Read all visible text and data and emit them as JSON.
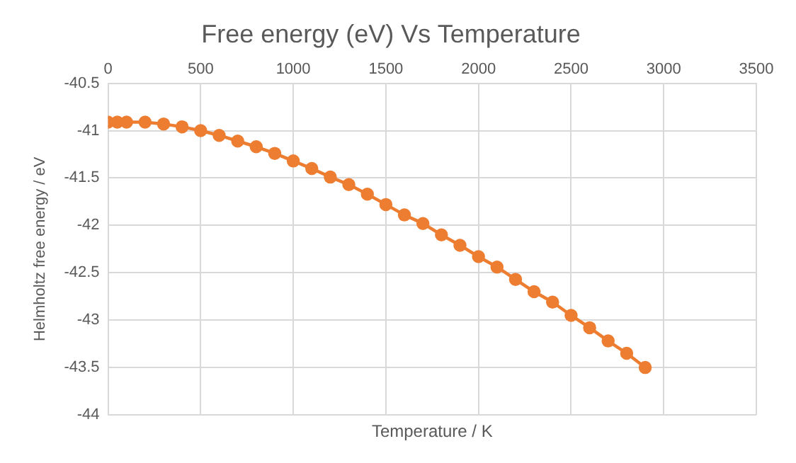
{
  "chart_data": {
    "type": "line",
    "title": "Free energy (eV) Vs Temperature",
    "xlabel": "Temperature / K",
    "ylabel": "Helmholtz free energy / eV",
    "x": [
      0,
      50,
      100,
      200,
      300,
      400,
      500,
      600,
      700,
      800,
      900,
      1000,
      1100,
      1200,
      1300,
      1400,
      1500,
      1600,
      1700,
      1800,
      1900,
      2000,
      2100,
      2200,
      2300,
      2400,
      2500,
      2600,
      2700,
      2800,
      2900
    ],
    "series": [
      {
        "color": "#ed7d31",
        "values": [
          -40.91,
          -40.91,
          -40.91,
          -40.91,
          -40.93,
          -40.96,
          -41.0,
          -41.05,
          -41.11,
          -41.17,
          -41.24,
          -41.32,
          -41.4,
          -41.49,
          -41.57,
          -41.67,
          -41.78,
          -41.89,
          -41.98,
          -42.1,
          -42.21,
          -42.33,
          -42.44,
          -42.57,
          -42.7,
          -42.81,
          -42.95,
          -43.08,
          -43.22,
          -43.35,
          -43.5
        ]
      }
    ],
    "xlim": [
      0,
      3500
    ],
    "xticks": [
      0,
      500,
      1000,
      1500,
      2000,
      2500,
      3000,
      3500
    ],
    "ylim": [
      -44,
      -40.5
    ],
    "yticks": [
      -44,
      -43.5,
      -43,
      -42.5,
      -42,
      -41.5,
      -41,
      -40.5
    ],
    "grid": true,
    "legend": false,
    "marker": "circle",
    "line_style": "solid"
  }
}
